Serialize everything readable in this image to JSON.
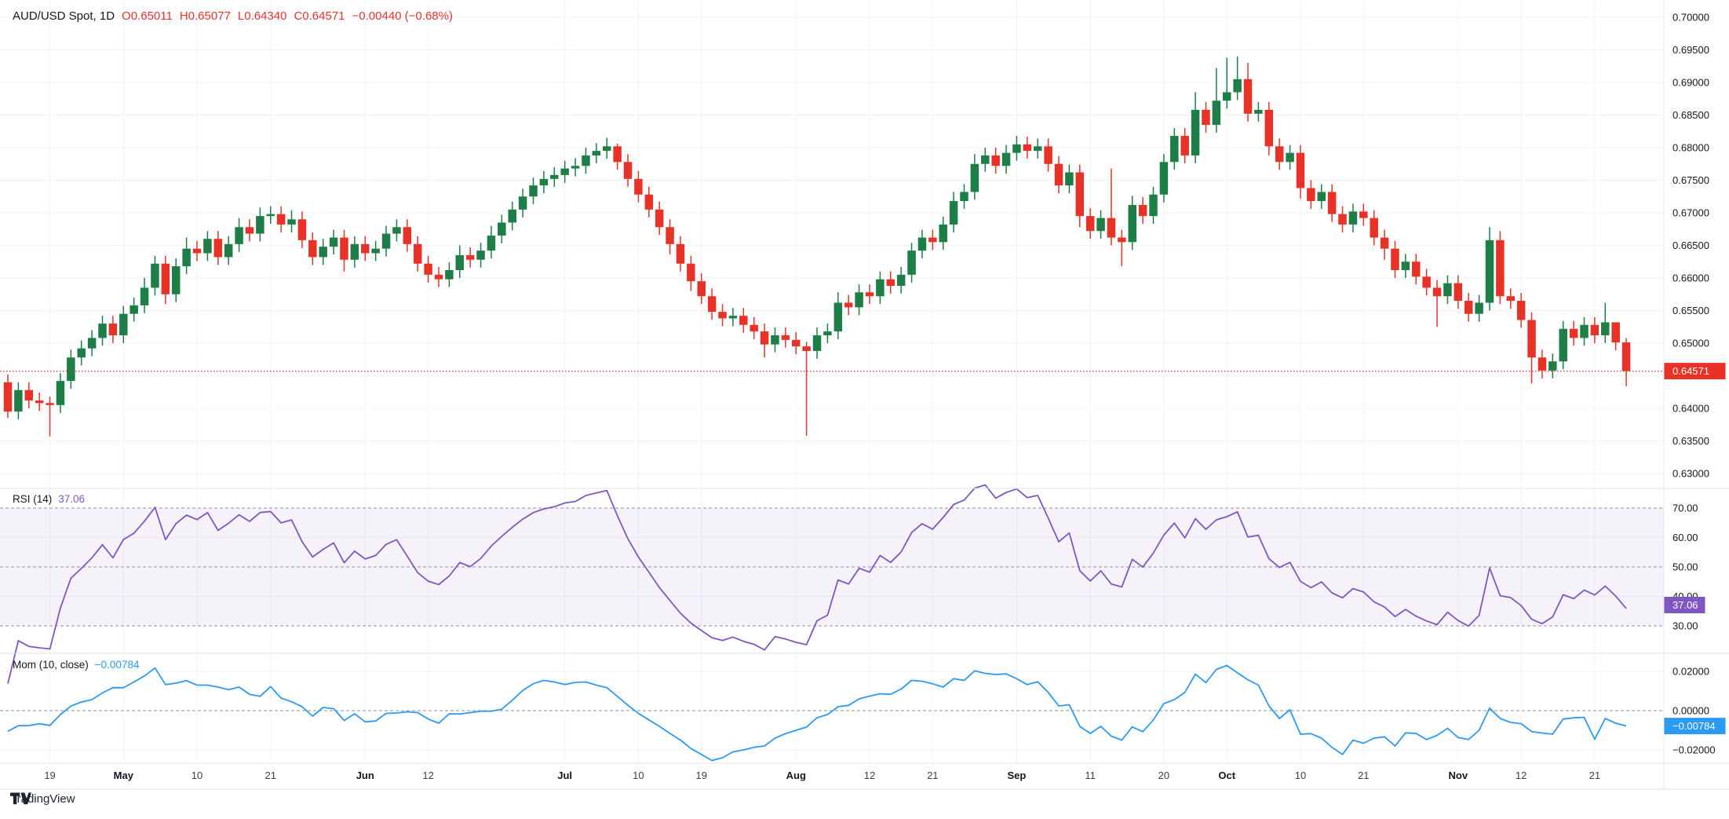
{
  "header": {
    "symbol": "AUD/USD Spot, 1D",
    "open": "O0.65011",
    "high": "H0.65077",
    "low": "L0.64340",
    "close": "C0.64571",
    "change": "−0.00440 (−0.68%)"
  },
  "panes": {
    "rsi": {
      "label": "RSI (14)",
      "value": "37.06"
    },
    "mom": {
      "label": "Mom (10, close)",
      "value": "−0.00784"
    }
  },
  "attribution": {
    "text": "TradingView",
    "logo_icon": "tradingview-logo"
  },
  "colors": {
    "up": "#1e7e48",
    "down": "#e83228",
    "last_price": "#e83228",
    "rsi": "#7e57c2",
    "rsi_band": "rgba(126,87,194,0.08)",
    "mom": "#2b9af3",
    "grid": "#f0f3fa",
    "border": "#e0e3eb",
    "axis_text": "#131722",
    "time_text_minor": "#3c404b",
    "dashed_level": "#8f939e",
    "header_values": "#e83228",
    "logo": "#1b2330"
  },
  "chart_data": {
    "type": "candlestick",
    "symbol": "AUD/USD Spot",
    "interval": "1D",
    "ylim": [
      0.6297,
      0.7027
    ],
    "price_axis_ticks": [
      0.7,
      0.695,
      0.69,
      0.685,
      0.68,
      0.675,
      0.67,
      0.665,
      0.66,
      0.655,
      0.65,
      0.645,
      0.64,
      0.635,
      0.63
    ],
    "last_price": 0.64571,
    "last_price_label": "0.64571",
    "first_open": 0.644,
    "pre_closes": [
      0.654,
      0.6545,
      0.653,
      0.6515,
      0.65,
      0.6505,
      0.6488,
      0.6475,
      0.648,
      0.6462,
      0.6455,
      0.6448,
      0.6452,
      0.644
    ],
    "closes": [
      0.6395,
      0.6428,
      0.6412,
      0.6408,
      0.6405,
      0.6442,
      0.6478,
      0.6492,
      0.6508,
      0.653,
      0.6512,
      0.6545,
      0.6558,
      0.6585,
      0.6622,
      0.6575,
      0.6618,
      0.6645,
      0.6638,
      0.666,
      0.6632,
      0.6652,
      0.6678,
      0.6668,
      0.6695,
      0.6698,
      0.6682,
      0.669,
      0.6658,
      0.6632,
      0.6648,
      0.6662,
      0.6628,
      0.6652,
      0.6638,
      0.6645,
      0.6668,
      0.6678,
      0.6652,
      0.6622,
      0.6605,
      0.6598,
      0.6612,
      0.6635,
      0.6628,
      0.6642,
      0.6665,
      0.6685,
      0.6705,
      0.6725,
      0.6742,
      0.6752,
      0.6758,
      0.6768,
      0.6772,
      0.6788,
      0.6795,
      0.6802,
      0.6778,
      0.6752,
      0.6728,
      0.6705,
      0.6678,
      0.6652,
      0.6622,
      0.6595,
      0.6572,
      0.6548,
      0.6538,
      0.6542,
      0.6528,
      0.6518,
      0.6498,
      0.6512,
      0.6505,
      0.6495,
      0.6488,
      0.6512,
      0.6518,
      0.6562,
      0.6555,
      0.6578,
      0.6572,
      0.6598,
      0.6588,
      0.6605,
      0.6642,
      0.6662,
      0.6655,
      0.6682,
      0.6718,
      0.6732,
      0.6775,
      0.6788,
      0.6772,
      0.6792,
      0.6805,
      0.6795,
      0.6802,
      0.6775,
      0.6742,
      0.6762,
      0.6695,
      0.6672,
      0.6692,
      0.6662,
      0.6655,
      0.6712,
      0.6695,
      0.6728,
      0.6778,
      0.6818,
      0.6788,
      0.6858,
      0.6835,
      0.6872,
      0.6885,
      0.6905,
      0.6852,
      0.6858,
      0.6802,
      0.6778,
      0.6792,
      0.6738,
      0.6718,
      0.6732,
      0.6698,
      0.6682,
      0.6702,
      0.6692,
      0.6662,
      0.6645,
      0.6612,
      0.6625,
      0.6602,
      0.6585,
      0.6572,
      0.6592,
      0.6565,
      0.6545,
      0.6562,
      0.6658,
      0.6572,
      0.6565,
      0.65355,
      0.6478,
      0.6458,
      0.6472,
      0.6522,
      0.6508,
      0.6528,
      0.6512,
      0.6532,
      0.65011,
      0.64571
    ],
    "wick": 0.0012,
    "wick_overrides": {
      "0": [
        null,
        0.6385
      ],
      "4": [
        0.6418,
        0.6357
      ],
      "13": [
        0.66,
        null
      ],
      "15": [
        null,
        0.656
      ],
      "17": [
        0.6662,
        null
      ],
      "22": [
        0.6692,
        null
      ],
      "24": [
        0.6708,
        null
      ],
      "27": [
        0.6704,
        null
      ],
      "32": [
        null,
        0.661
      ],
      "43": [
        0.665,
        null
      ],
      "46": [
        0.668,
        null
      ],
      "55": [
        0.68,
        null
      ],
      "57": [
        0.6815,
        null
      ],
      "58": [
        0.6806,
        null
      ],
      "63": [
        null,
        0.6636
      ],
      "65": [
        null,
        0.658
      ],
      "72": [
        null,
        0.6478
      ],
      "76": [
        0.6502,
        0.6358
      ],
      "79": [
        0.6578,
        null
      ],
      "90": [
        0.6732,
        null
      ],
      "92": [
        0.679,
        null
      ],
      "96": [
        0.6818,
        null
      ],
      "102": [
        null,
        0.6678
      ],
      "105": [
        0.6768,
        null
      ],
      "106": [
        null,
        0.6618
      ],
      "107": [
        0.6726,
        null
      ],
      "113": [
        0.6885,
        null
      ],
      "115": [
        0.6922,
        null
      ],
      "116": [
        0.6938,
        null
      ],
      "117": [
        0.694,
        null
      ],
      "118": [
        0.693,
        null
      ],
      "120": [
        null,
        0.6788
      ],
      "123": [
        null,
        0.6722
      ],
      "131": [
        null,
        0.6628
      ],
      "136": [
        null,
        0.6525
      ],
      "141": [
        0.6678,
        null
      ],
      "142": [
        0.6672,
        null
      ],
      "145": [
        null,
        0.6438
      ],
      "152": [
        0.6562,
        null
      ],
      "153": [
        0.6528,
        null
      ],
      "154": [
        0.65077,
        0.6434
      ]
    },
    "time_ticks": [
      {
        "i": 4,
        "label": "19",
        "major": false
      },
      {
        "i": 11,
        "label": "May",
        "major": true
      },
      {
        "i": 18,
        "label": "10",
        "major": false
      },
      {
        "i": 25,
        "label": "21",
        "major": false
      },
      {
        "i": 34,
        "label": "Jun",
        "major": true
      },
      {
        "i": 40,
        "label": "12",
        "major": false
      },
      {
        "i": 53,
        "label": "Jul",
        "major": true
      },
      {
        "i": 60,
        "label": "10",
        "major": false
      },
      {
        "i": 66,
        "label": "19",
        "major": false
      },
      {
        "i": 75,
        "label": "Aug",
        "major": true
      },
      {
        "i": 82,
        "label": "12",
        "major": false
      },
      {
        "i": 88,
        "label": "21",
        "major": false
      },
      {
        "i": 96,
        "label": "Sep",
        "major": true
      },
      {
        "i": 103,
        "label": "11",
        "major": false
      },
      {
        "i": 110,
        "label": "20",
        "major": false
      },
      {
        "i": 116,
        "label": "Oct",
        "major": true
      },
      {
        "i": 123,
        "label": "10",
        "major": false
      },
      {
        "i": 129,
        "label": "21",
        "major": false
      },
      {
        "i": 138,
        "label": "Nov",
        "major": true
      },
      {
        "i": 144,
        "label": "12",
        "major": false
      },
      {
        "i": 151,
        "label": "21",
        "major": false
      }
    ],
    "indicators": {
      "rsi": {
        "label": "RSI (14)",
        "period": 14,
        "last": 37.06,
        "last_label": "37.06",
        "levels_dashed": [
          70,
          50,
          30
        ],
        "band_range": [
          30,
          70
        ],
        "axis_ticks": [
          70,
          60,
          50,
          40,
          30
        ]
      },
      "mom": {
        "label": "Mom (10, close)",
        "period": 10,
        "last": -0.00784,
        "last_label": "−0.00784",
        "levels_dashed": [
          0
        ],
        "axis_ticks": [
          0.02,
          0,
          -0.02
        ]
      }
    }
  }
}
